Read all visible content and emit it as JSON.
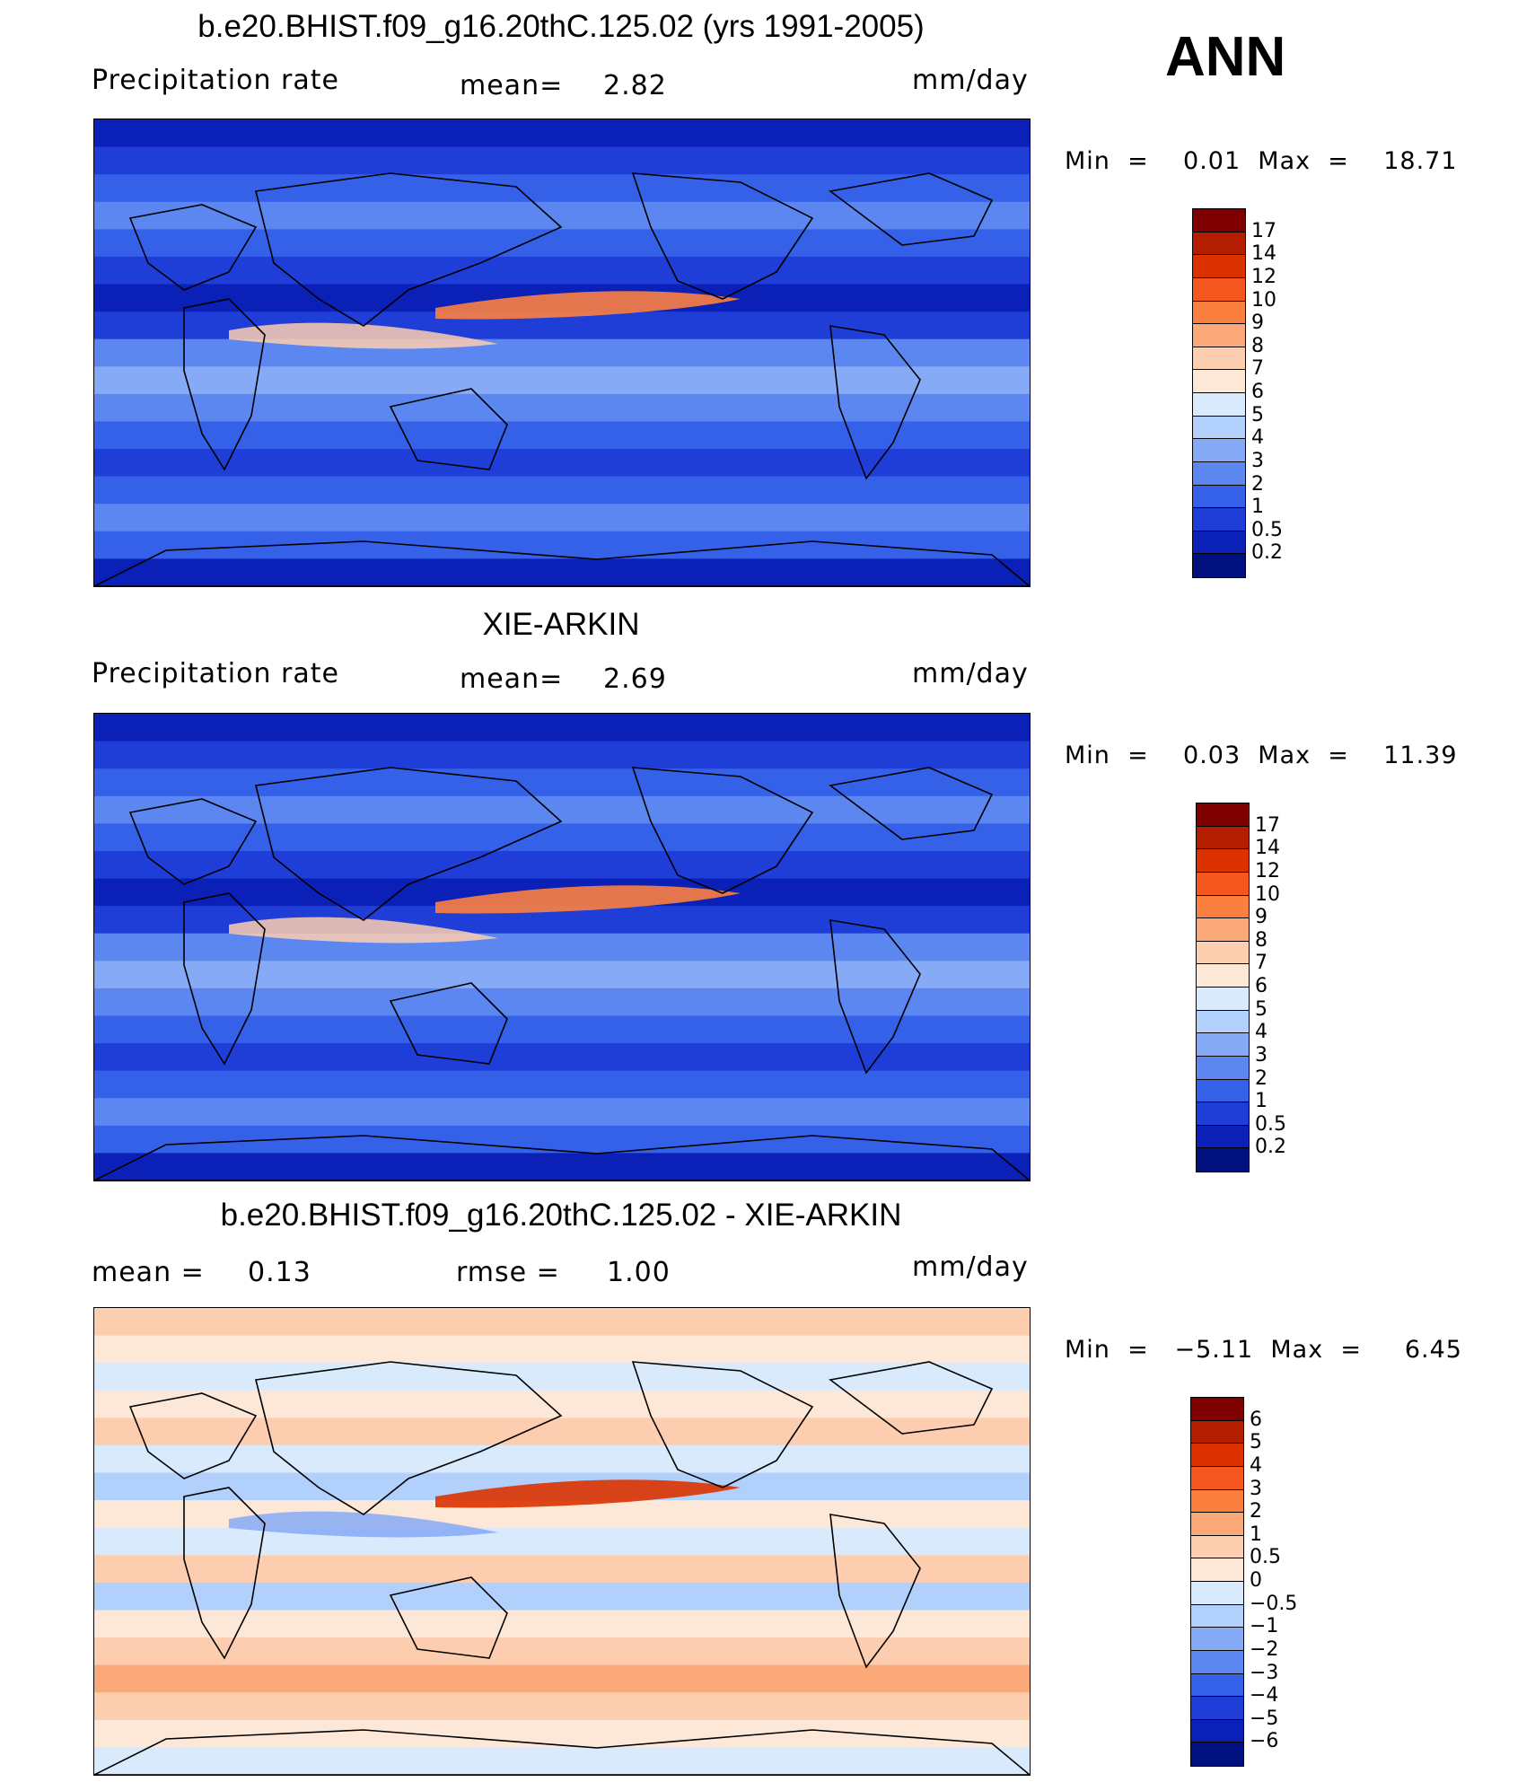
{
  "season": "ANN",
  "panels": [
    {
      "title": "b.e20.BHIST.f09_g16.20thC.125.02 (yrs 1991-2005)",
      "left_label": "Precipitation  rate",
      "mid_label": "mean=",
      "mid_value": "2.82",
      "units": "mm/day",
      "range_text": "Min  =    0.01  Max  =    18.71",
      "colorbar_labels": [
        "17",
        "14",
        "12",
        "10",
        "9",
        "8",
        "7",
        "6",
        "5",
        "4",
        "3",
        "2",
        "1",
        "0.5",
        "0.2"
      ],
      "colors": [
        "#7f0000",
        "#b31d00",
        "#dc3200",
        "#f4581e",
        "#fb8040",
        "#fca97a",
        "#fdcdb0",
        "#fde8d8",
        "#d8eafc",
        "#b1d0fb",
        "#86aaf5",
        "#5c86f0",
        "#3560e8",
        "#1f3ed8",
        "#0a20b6",
        "#00107f"
      ]
    },
    {
      "title": "XIE-ARKIN",
      "left_label": "Precipitation  rate",
      "mid_label": "mean=",
      "mid_value": "2.69",
      "units": "mm/day",
      "range_text": "Min  =    0.03  Max  =    11.39",
      "colorbar_labels": [
        "17",
        "14",
        "12",
        "10",
        "9",
        "8",
        "7",
        "6",
        "5",
        "4",
        "3",
        "2",
        "1",
        "0.5",
        "0.2"
      ],
      "colors": [
        "#7f0000",
        "#b31d00",
        "#dc3200",
        "#f4581e",
        "#fb8040",
        "#fca97a",
        "#fdcdb0",
        "#fde8d8",
        "#d8eafc",
        "#b1d0fb",
        "#86aaf5",
        "#5c86f0",
        "#3560e8",
        "#1f3ed8",
        "#0a20b6",
        "#00107f"
      ]
    },
    {
      "title": "b.e20.BHIST.f09_g16.20thC.125.02 - XIE-ARKIN",
      "left_label": "mean  =",
      "left_value": "0.13",
      "mid_label": "rmse  =",
      "mid_value": "1.00",
      "units": "mm/day",
      "range_text": "Min  =   −5.11  Max  =     6.45",
      "colorbar_labels": [
        "6",
        "5",
        "4",
        "3",
        "2",
        "1",
        "0.5",
        "0",
        "−0.5",
        "−1",
        "−2",
        "−3",
        "−4",
        "−5",
        "−6"
      ],
      "colors": [
        "#7f0000",
        "#b31d00",
        "#dc3200",
        "#f4581e",
        "#fb8040",
        "#fca97a",
        "#fdcdb0",
        "#fde8d8",
        "#d8eafc",
        "#b1d0fb",
        "#86aaf5",
        "#5c86f0",
        "#3560e8",
        "#1f3ed8",
        "#0a20b6",
        "#00107f"
      ]
    }
  ],
  "chart_data": [
    {
      "type": "heatmap",
      "title": "b.e20.BHIST.f09_g16.20thC.125.02 (yrs 1991-2005)",
      "variable": "Precipitation  rate",
      "units": "mm/day",
      "mean": 2.82,
      "min": 0.01,
      "max": 18.71,
      "levels": [
        0.2,
        0.5,
        1,
        2,
        3,
        4,
        5,
        6,
        7,
        8,
        9,
        10,
        12,
        14,
        17
      ]
    },
    {
      "type": "heatmap",
      "title": "XIE-ARKIN",
      "variable": "Precipitation  rate",
      "units": "mm/day",
      "mean": 2.69,
      "min": 0.03,
      "max": 11.39,
      "levels": [
        0.2,
        0.5,
        1,
        2,
        3,
        4,
        5,
        6,
        7,
        8,
        9,
        10,
        12,
        14,
        17
      ]
    },
    {
      "type": "heatmap",
      "title": "b.e20.BHIST.f09_g16.20thC.125.02 - XIE-ARKIN",
      "units": "mm/day",
      "mean": 0.13,
      "rmse": 1.0,
      "min": -5.11,
      "max": 6.45,
      "levels": [
        -6,
        -5,
        -4,
        -3,
        -2,
        -1,
        -0.5,
        0,
        0.5,
        1,
        2,
        3,
        4,
        5,
        6
      ]
    }
  ]
}
